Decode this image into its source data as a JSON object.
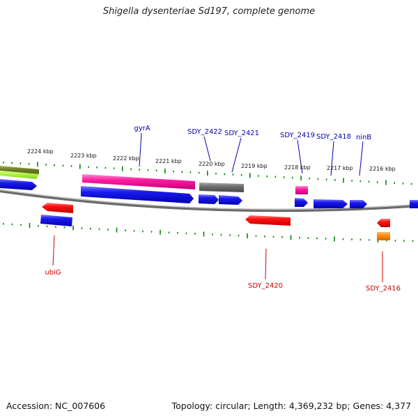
{
  "title": "Shigella dysenteriae Sd197, complete genome",
  "footer": {
    "accession": "Accession: NC_007606",
    "topology": "Topology: circular; Length: 4,369,232 bp; Genes: 4,377"
  },
  "colors": {
    "forward": "#1010dd",
    "reverse": "#ee1111",
    "backbone": "#888888",
    "ticks": "#008800",
    "label_forward": "#0000aa",
    "label_reverse": "#cc0000"
  },
  "scale": {
    "tick_labels": [
      "2224 kbp",
      "2223 kbp",
      "2222 kbp",
      "2221 kbp",
      "2220 kbp",
      "2219 kbp",
      "2218 kbp",
      "2217 kbp",
      "2216 kbp"
    ]
  },
  "gene_labels": {
    "forward": [
      "gyrA",
      "SDY_2422",
      "SDY_2421",
      "SDY_2419",
      "SDY_2418",
      "ninB"
    ],
    "reverse": [
      "ubiG",
      "SDY_2420",
      "SDY_2416"
    ]
  }
}
